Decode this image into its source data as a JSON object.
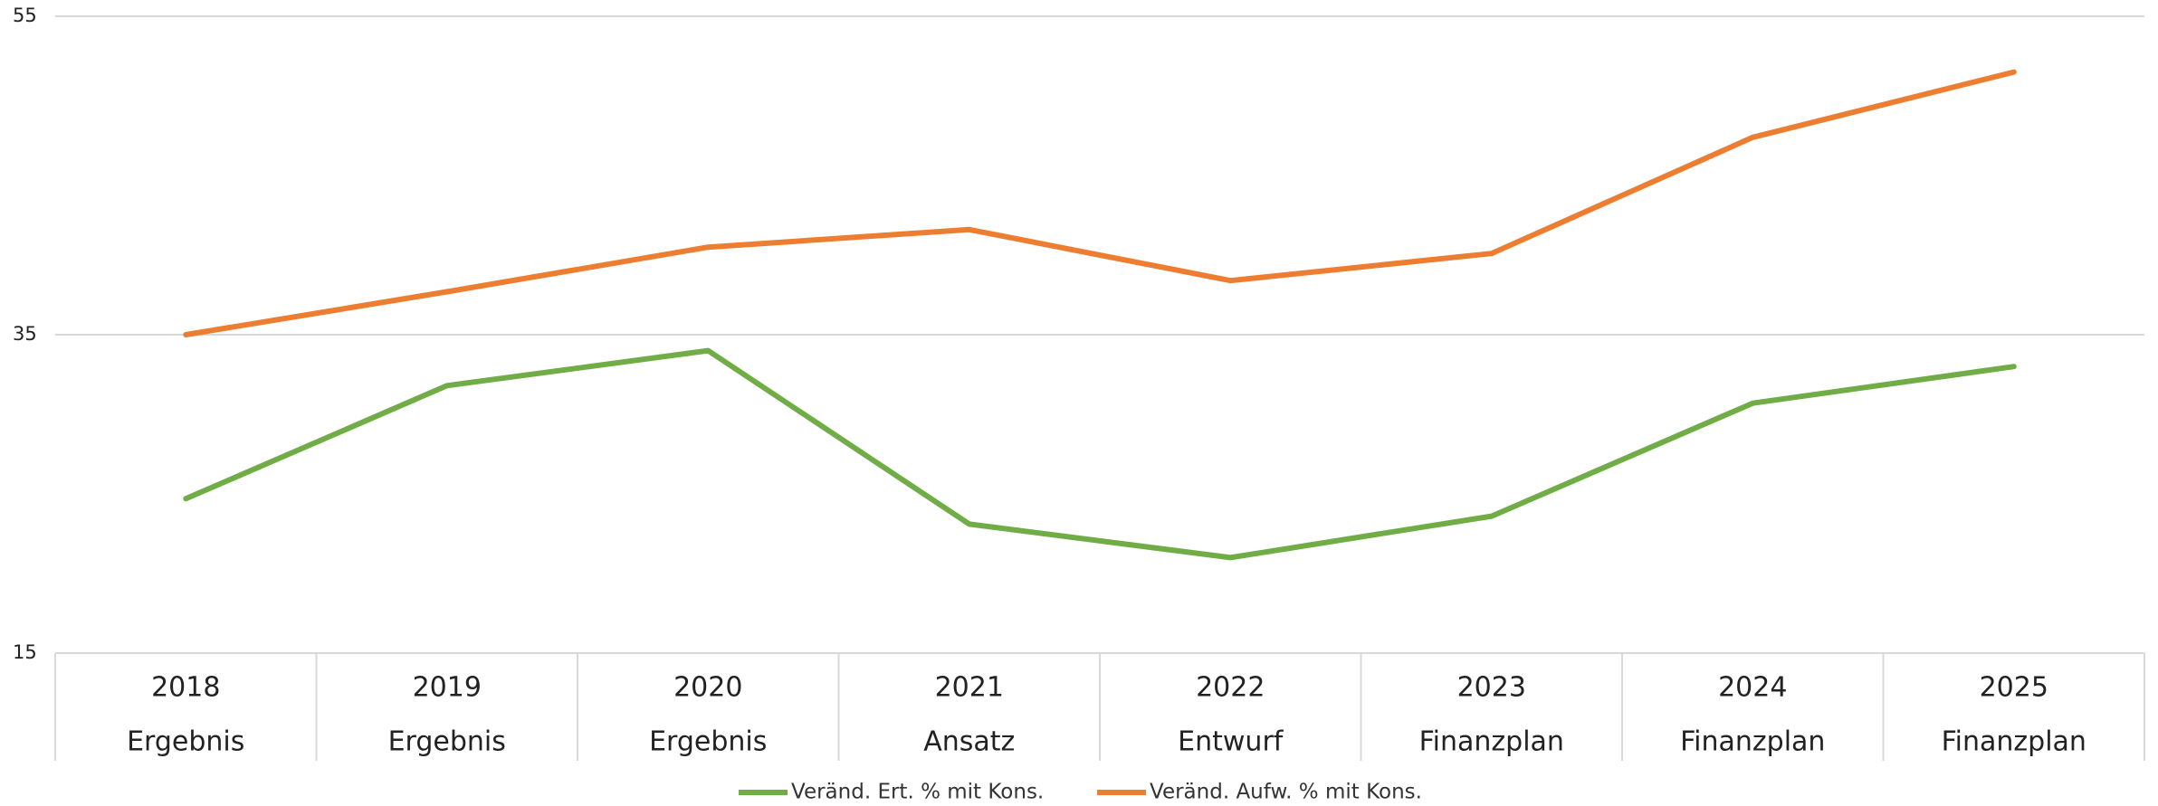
{
  "chart_data": {
    "type": "line",
    "categories": [
      "2018",
      "2019",
      "2020",
      "2021",
      "2022",
      "2023",
      "2024",
      "2025"
    ],
    "category_groups": [
      "Ergebnis",
      "Ergebnis",
      "Ergebnis",
      "Ansatz",
      "Entwurf",
      "Finanzplan",
      "Finanzplan",
      "Finanzplan"
    ],
    "series": [
      {
        "name": "Veränd. Ert. % mit Kons.",
        "color": "#70ad47",
        "values": [
          24.7,
          31.8,
          34.0,
          23.1,
          21.0,
          23.6,
          30.7,
          33.0
        ]
      },
      {
        "name": "Veränd. Aufw. % mit Kons.",
        "color": "#ed7d31",
        "values": [
          35.0,
          37.7,
          40.5,
          41.6,
          38.4,
          40.1,
          47.4,
          51.5
        ]
      }
    ],
    "ylim": [
      15,
      55
    ],
    "yticks": [
      15,
      35,
      55
    ],
    "grid": true,
    "legend": "bottom"
  }
}
